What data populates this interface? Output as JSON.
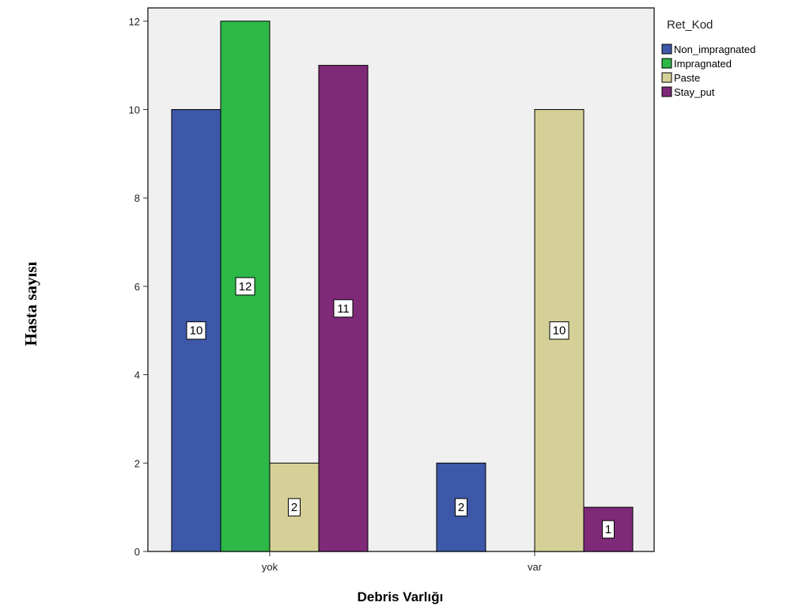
{
  "chart_data": {
    "type": "bar",
    "categories": [
      "yok",
      "var"
    ],
    "series": [
      {
        "name": "Non_impragnated",
        "values": [
          10,
          2
        ],
        "color": "#3d58a8"
      },
      {
        "name": "Impragnated",
        "values": [
          12,
          0
        ],
        "color": "#2db848"
      },
      {
        "name": "Paste",
        "values": [
          2,
          10
        ],
        "color": "#d5d097"
      },
      {
        "name": "Stay_put",
        "values": [
          11,
          1
        ],
        "color": "#7e2a78"
      }
    ],
    "data_labels": [
      [
        "10",
        "2"
      ],
      [
        "12",
        ""
      ],
      [
        "2",
        "10"
      ],
      [
        "11",
        "1"
      ]
    ],
    "xlabel": "Debris Varlığı",
    "ylabel": "Hasta sayısı",
    "legend_title": "Ret_Kod",
    "legend_position": "right",
    "ylim": [
      0,
      12.3
    ],
    "yticks": [
      "0",
      "2",
      "4",
      "6",
      "8",
      "10",
      "12"
    ],
    "grid": false,
    "plot_background": "#f0f0f0"
  }
}
